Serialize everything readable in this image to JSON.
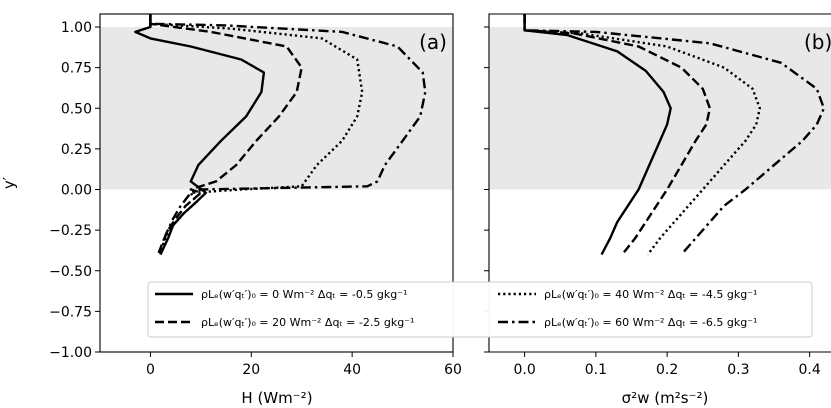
{
  "chart_data": [
    {
      "type": "line",
      "panel_label": "(a)",
      "xlabel": "H (Wm⁻²)",
      "ylabel": "y′",
      "xlim": [
        -10,
        60
      ],
      "ylim": [
        -1.0,
        1.08
      ],
      "xticks": [
        "0",
        "20",
        "40",
        "60"
      ],
      "yticks": [
        "1.00",
        "0.75",
        "0.50",
        "0.25",
        "0.00",
        "−0.25",
        "−0.50",
        "−0.75",
        "−1.00"
      ],
      "shaded_band_y": [
        0.0,
        1.0
      ],
      "series": [
        {
          "style": "solid",
          "x": [
            0,
            0,
            0,
            -3,
            0,
            8,
            18,
            22.5,
            22,
            19,
            14,
            9.5,
            8,
            11,
            9,
            6.5,
            4.5,
            3.5,
            2
          ],
          "y": [
            1.08,
            1.0,
            1.0,
            0.97,
            0.93,
            0.88,
            0.8,
            0.72,
            0.6,
            0.45,
            0.3,
            0.15,
            0.05,
            -0.02,
            -0.08,
            -0.15,
            -0.22,
            -0.3,
            -0.4
          ]
        },
        {
          "style": "dash",
          "x": [
            0,
            0,
            0,
            12,
            27,
            30,
            29,
            25.5,
            21,
            17,
            13,
            8,
            10,
            7,
            5,
            3.5,
            2.5,
            1.5
          ],
          "y": [
            1.08,
            1.0,
            1.02,
            0.97,
            0.88,
            0.75,
            0.6,
            0.45,
            0.3,
            0.15,
            0.05,
            0.0,
            -0.02,
            -0.1,
            -0.18,
            -0.25,
            -0.32,
            -0.4
          ]
        },
        {
          "style": "dot",
          "x": [
            0,
            0,
            0,
            16,
            34,
            41,
            42,
            41,
            38,
            33,
            30,
            18,
            8,
            9,
            6.5,
            4.5,
            3,
            2
          ],
          "y": [
            1.08,
            1.0,
            1.02,
            0.99,
            0.93,
            0.8,
            0.6,
            0.45,
            0.3,
            0.15,
            0.02,
            0.0,
            -0.02,
            -0.08,
            -0.15,
            -0.22,
            -0.3,
            -0.4
          ]
        },
        {
          "style": "dashdot",
          "x": [
            0,
            0,
            0,
            15,
            38,
            49,
            54,
            54.5,
            53.5,
            50,
            46.5,
            45,
            43,
            10,
            8,
            6,
            4.5,
            3,
            2
          ],
          "y": [
            1.08,
            1.0,
            1.02,
            1.01,
            0.97,
            0.88,
            0.72,
            0.6,
            0.45,
            0.3,
            0.15,
            0.05,
            0.02,
            0.0,
            -0.02,
            -0.1,
            -0.18,
            -0.28,
            -0.4
          ]
        }
      ]
    },
    {
      "type": "line",
      "panel_label": "(b)",
      "xlabel": "σ²w (m²s⁻²)",
      "xlim": [
        -0.05,
        0.43
      ],
      "ylim": [
        -1.0,
        1.08
      ],
      "xticks": [
        "0.0",
        "0.1",
        "0.2",
        "0.3",
        "0.4"
      ],
      "shaded_band_y": [
        0.0,
        1.0
      ],
      "series": [
        {
          "style": "solid",
          "x": [
            0,
            0,
            0,
            0.06,
            0.13,
            0.17,
            0.195,
            0.205,
            0.2,
            0.19,
            0.175,
            0.16,
            0.145,
            0.13,
            0.12,
            0.108
          ],
          "y": [
            1.08,
            1.0,
            0.98,
            0.95,
            0.85,
            0.73,
            0.6,
            0.5,
            0.4,
            0.3,
            0.15,
            0.0,
            -0.1,
            -0.2,
            -0.3,
            -0.4
          ]
        },
        {
          "style": "dash",
          "x": [
            0,
            0,
            0,
            0.07,
            0.16,
            0.22,
            0.25,
            0.26,
            0.255,
            0.24,
            0.22,
            0.2,
            0.185,
            0.17,
            0.155,
            0.137
          ],
          "y": [
            1.08,
            1.0,
            0.98,
            0.96,
            0.88,
            0.75,
            0.62,
            0.5,
            0.4,
            0.3,
            0.15,
            0.0,
            -0.1,
            -0.2,
            -0.3,
            -0.4
          ]
        },
        {
          "style": "dot",
          "x": [
            0,
            0,
            0,
            0.08,
            0.2,
            0.28,
            0.32,
            0.33,
            0.325,
            0.31,
            0.28,
            0.25,
            0.23,
            0.21,
            0.19,
            0.173
          ],
          "y": [
            1.08,
            1.0,
            0.98,
            0.96,
            0.88,
            0.75,
            0.62,
            0.5,
            0.4,
            0.3,
            0.15,
            0.0,
            -0.1,
            -0.2,
            -0.3,
            -0.4
          ]
        },
        {
          "style": "dashdot",
          "x": [
            0,
            0,
            0,
            0.1,
            0.26,
            0.36,
            0.41,
            0.42,
            0.41,
            0.39,
            0.35,
            0.31,
            0.28,
            0.26,
            0.24,
            0.22
          ],
          "y": [
            1.08,
            1.0,
            0.98,
            0.97,
            0.9,
            0.78,
            0.62,
            0.5,
            0.4,
            0.3,
            0.15,
            0.0,
            -0.1,
            -0.2,
            -0.3,
            -0.4
          ]
        }
      ]
    }
  ],
  "legend": {
    "placement": "lower-center",
    "entries": [
      {
        "style": "solid",
        "text": "ρLₑ(w′qₜ′)₀ = 0 Wm⁻²  Δqₜ = -0.5 gkg⁻¹"
      },
      {
        "style": "dash",
        "text": "ρLₑ(w′qₜ′)₀ = 20 Wm⁻²  Δqₜ = -2.5 gkg⁻¹"
      },
      {
        "style": "dot",
        "text": "ρLₑ(w′qₜ′)₀ = 40 Wm⁻²  Δqₜ = -4.5 gkg⁻¹"
      },
      {
        "style": "dashdot",
        "text": "ρLₑ(w′qₜ′)₀ = 60 Wm⁻²  Δqₜ = -6.5 gkg⁻¹"
      }
    ]
  }
}
